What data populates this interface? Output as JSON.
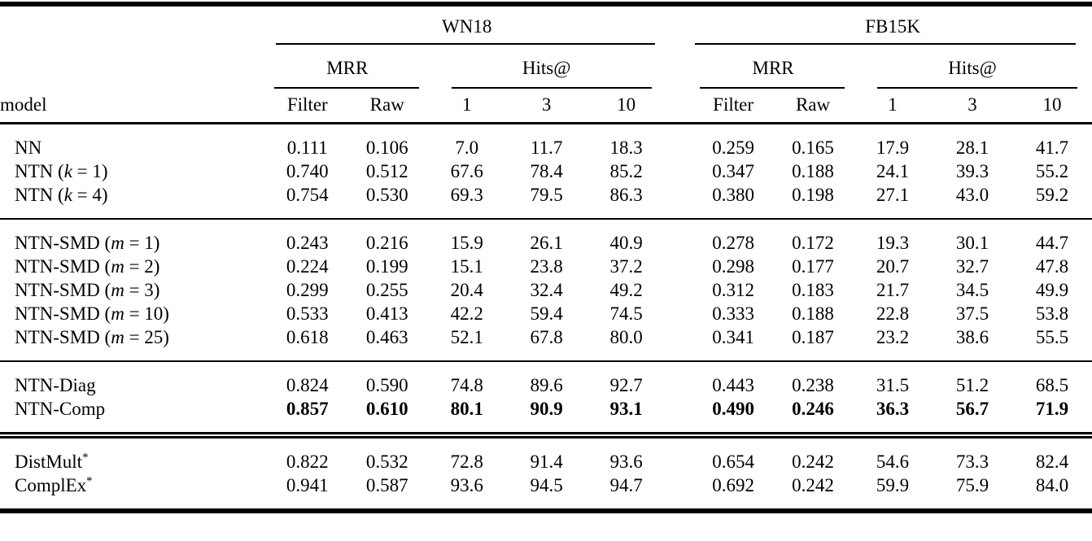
{
  "table": {
    "model_header": "model",
    "datasets": [
      {
        "label": "WN18"
      },
      {
        "label": "FB15K"
      }
    ],
    "metric_groups": [
      {
        "label": "MRR",
        "columns": [
          "Filter",
          "Raw"
        ]
      },
      {
        "label": "Hits@",
        "columns": [
          "1",
          "3",
          "10"
        ]
      }
    ],
    "groups": [
      {
        "separator": "none",
        "rows": [
          {
            "model": "NN",
            "values_bold": false,
            "values": [
              "0.111",
              "0.106",
              "7.0",
              "11.7",
              "18.3",
              "0.259",
              "0.165",
              "17.9",
              "28.1",
              "41.7"
            ]
          },
          {
            "model": "NTN ($k$ = 1)",
            "values_bold": false,
            "values": [
              "0.740",
              "0.512",
              "67.6",
              "78.4",
              "85.2",
              "0.347",
              "0.188",
              "24.1",
              "39.3",
              "55.2"
            ]
          },
          {
            "model": "NTN ($k$ = 4)",
            "values_bold": false,
            "values": [
              "0.754",
              "0.530",
              "69.3",
              "79.5",
              "86.3",
              "0.380",
              "0.198",
              "27.1",
              "43.0",
              "59.2"
            ]
          }
        ]
      },
      {
        "separator": "single",
        "rows": [
          {
            "model": "NTN-SMD ($m$ = 1)",
            "values_bold": false,
            "values": [
              "0.243",
              "0.216",
              "15.9",
              "26.1",
              "40.9",
              "0.278",
              "0.172",
              "19.3",
              "30.1",
              "44.7"
            ]
          },
          {
            "model": "NTN-SMD ($m$ = 2)",
            "values_bold": false,
            "values": [
              "0.224",
              "0.199",
              "15.1",
              "23.8",
              "37.2",
              "0.298",
              "0.177",
              "20.7",
              "32.7",
              "47.8"
            ]
          },
          {
            "model": "NTN-SMD ($m$ = 3)",
            "values_bold": false,
            "values": [
              "0.299",
              "0.255",
              "20.4",
              "32.4",
              "49.2",
              "0.312",
              "0.183",
              "21.7",
              "34.5",
              "49.9"
            ]
          },
          {
            "model": "NTN-SMD ($m$ = 10)",
            "values_bold": false,
            "values": [
              "0.533",
              "0.413",
              "42.2",
              "59.4",
              "74.5",
              "0.333",
              "0.188",
              "22.8",
              "37.5",
              "53.8"
            ]
          },
          {
            "model": "NTN-SMD ($m$ = 25)",
            "values_bold": false,
            "values": [
              "0.618",
              "0.463",
              "52.1",
              "67.8",
              "80.0",
              "0.341",
              "0.187",
              "23.2",
              "38.6",
              "55.5"
            ]
          }
        ]
      },
      {
        "separator": "single",
        "rows": [
          {
            "model": "NTN-Diag",
            "values_bold": false,
            "values": [
              "0.824",
              "0.590",
              "74.8",
              "89.6",
              "92.7",
              "0.443",
              "0.238",
              "31.5",
              "51.2",
              "68.5"
            ]
          },
          {
            "model": "NTN-Comp",
            "values_bold": true,
            "values": [
              "0.857",
              "0.610",
              "80.1",
              "90.9",
              "93.1",
              "0.490",
              "0.246",
              "36.3",
              "56.7",
              "71.9"
            ]
          }
        ]
      },
      {
        "separator": "double",
        "rows": [
          {
            "model": "DistMult^*",
            "values_bold": false,
            "values": [
              "0.822",
              "0.532",
              "72.8",
              "91.4",
              "93.6",
              "0.654",
              "0.242",
              "54.6",
              "73.3",
              "82.4"
            ]
          },
          {
            "model": "ComplEx^*",
            "values_bold": false,
            "values": [
              "0.941",
              "0.587",
              "93.6",
              "94.5",
              "94.7",
              "0.692",
              "0.242",
              "59.9",
              "75.9",
              "84.0"
            ]
          }
        ]
      }
    ]
  }
}
